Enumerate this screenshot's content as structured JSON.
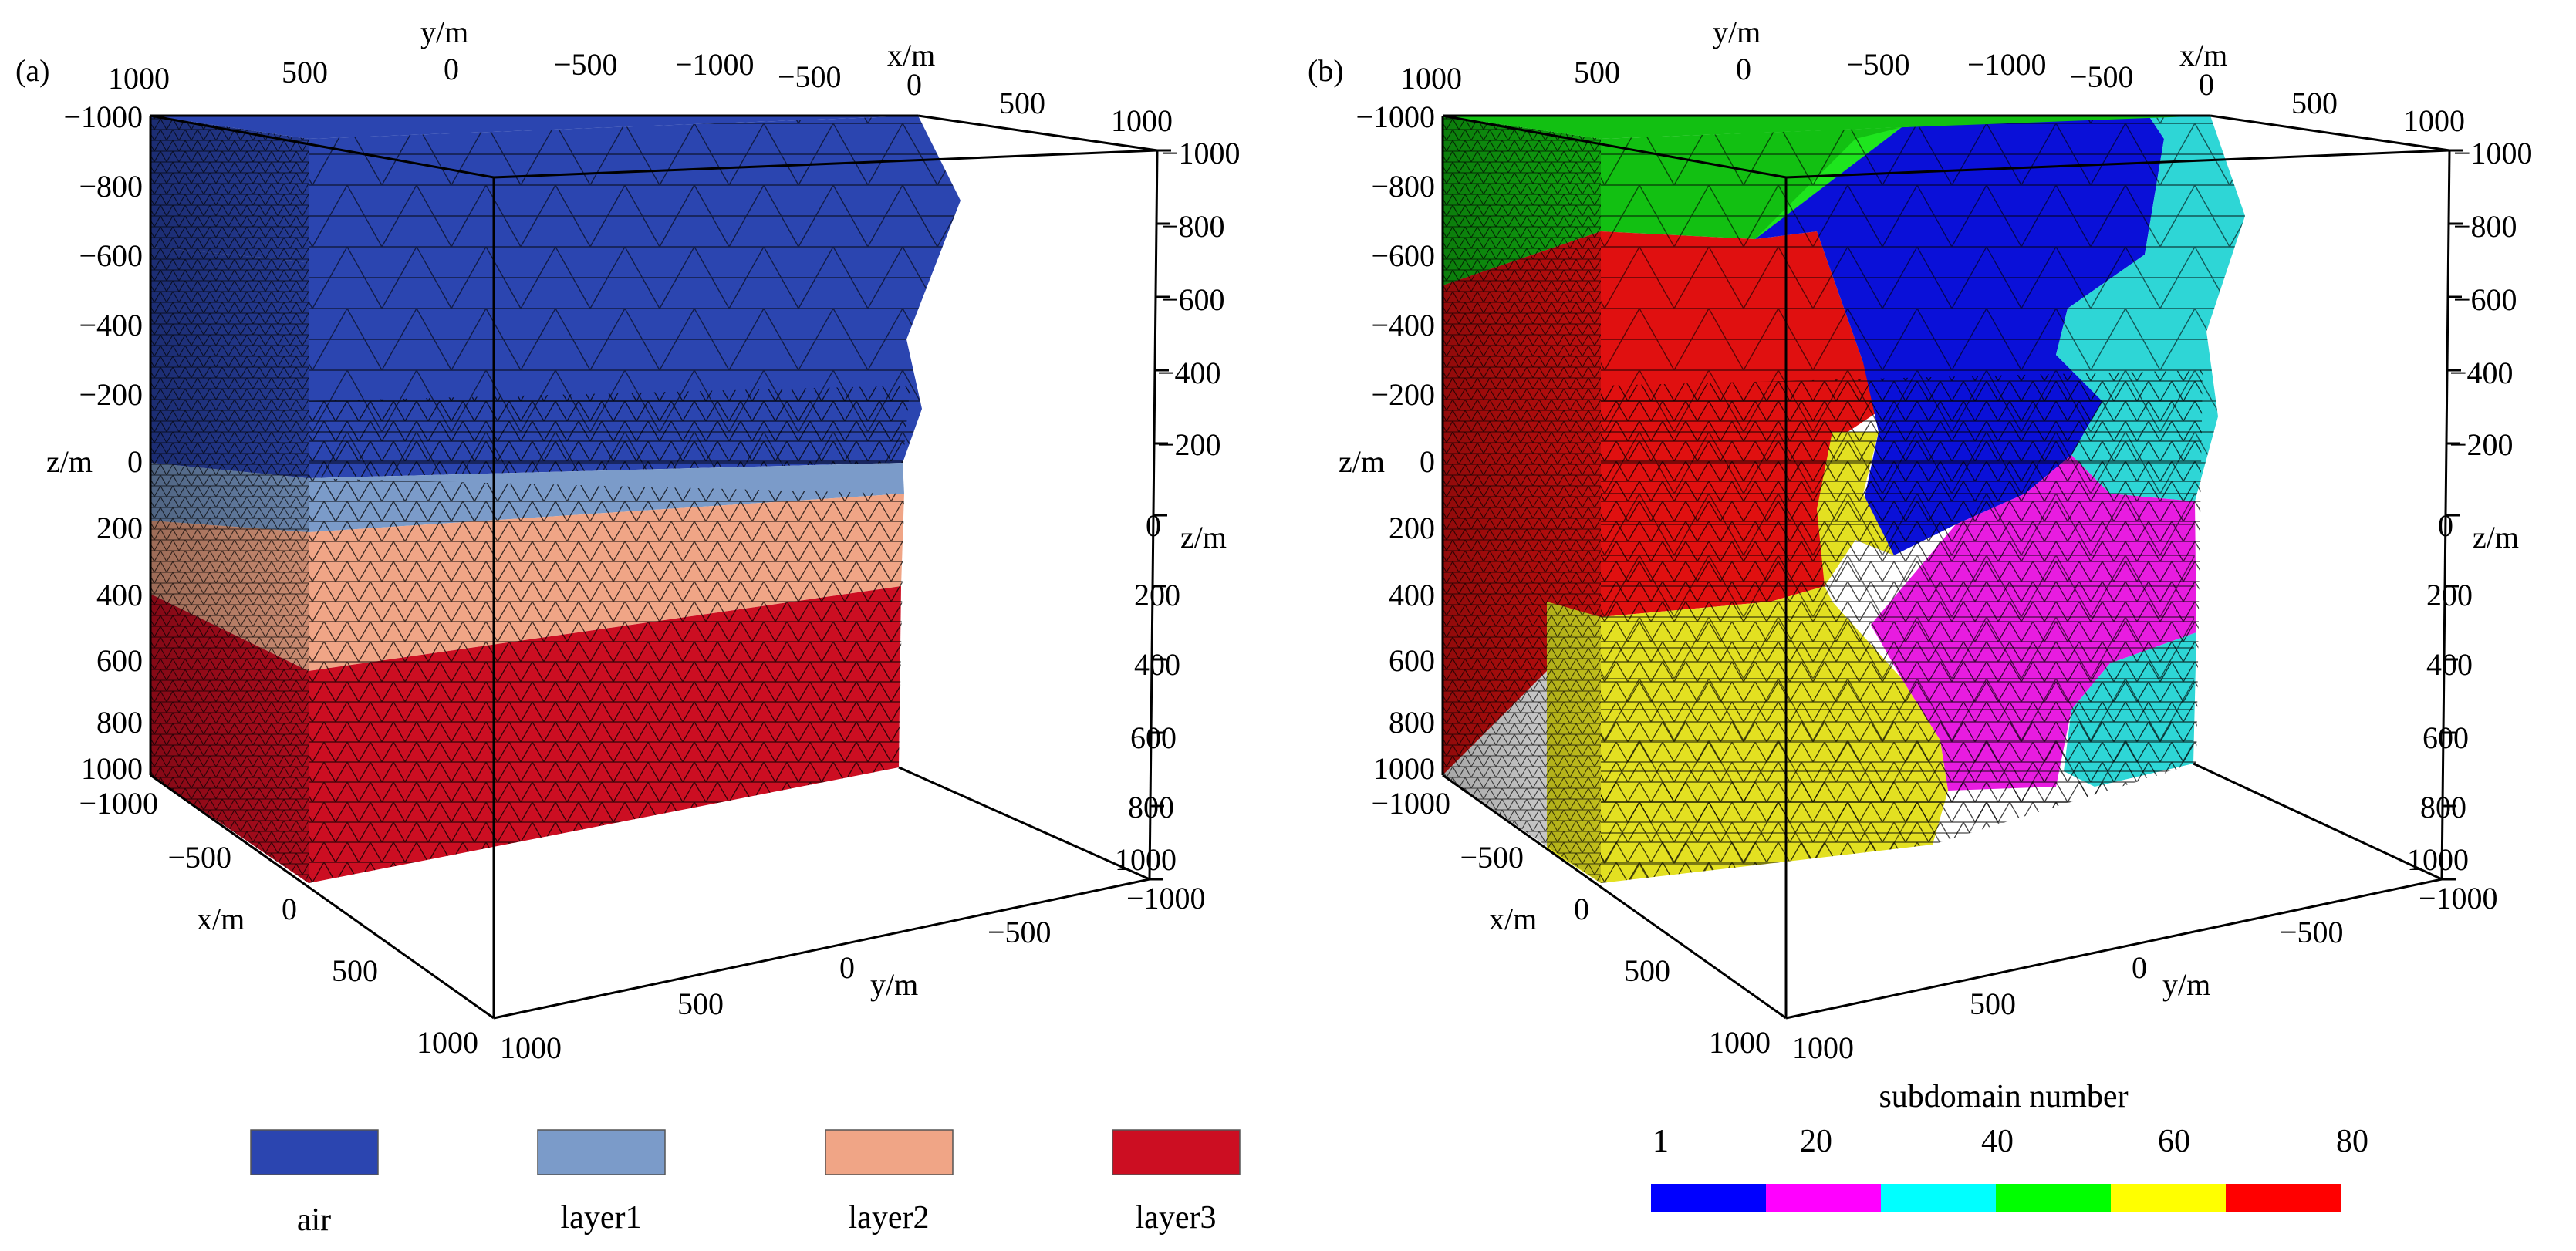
{
  "panels": [
    {
      "label": "(a)",
      "y_top_title": "y/m",
      "x_top_title": "x/m",
      "y_top_ticks": [
        "1000",
        "500",
        "0",
        "−500",
        "−1000"
      ],
      "x_top_ticks": [
        "−500",
        "0",
        "500",
        "1000"
      ],
      "z_left_title": "z/m",
      "z_left_ticks": [
        "−1000",
        "−800",
        "−600",
        "−400",
        "−200",
        "0",
        "200",
        "400",
        "600",
        "800",
        "1000"
      ],
      "z_right_title": "z/m",
      "z_right_ticks": [
        "−1000",
        "−800",
        "−600",
        "−400",
        "−200",
        "0",
        "200",
        "400",
        "600",
        "800",
        "1000"
      ],
      "x_bottom_title": "x/m",
      "x_bottom_ticks": [
        "−1000",
        "−500",
        "0",
        "500",
        "1000"
      ],
      "y_bottom_title": "y/m",
      "y_bottom_ticks": [
        "1000",
        "500",
        "0",
        "−500",
        "−1000"
      ]
    },
    {
      "label": "(b)",
      "y_top_title": "y/m",
      "x_top_title": "x/m",
      "y_top_ticks": [
        "1000",
        "500",
        "0",
        "−500",
        "−1000"
      ],
      "x_top_ticks": [
        "−500",
        "0",
        "500",
        "1000"
      ],
      "z_left_title": "z/m",
      "z_left_ticks": [
        "−1000",
        "−800",
        "−600",
        "−400",
        "−200",
        "0",
        "200",
        "400",
        "600",
        "800",
        "1000"
      ],
      "z_right_title": "z/m",
      "z_right_ticks": [
        "−1000",
        "−800",
        "−600",
        "−400",
        "−200",
        "0",
        "200",
        "400",
        "600",
        "800",
        "1000"
      ],
      "x_bottom_title": "x/m",
      "x_bottom_ticks": [
        "−1000",
        "−500",
        "0",
        "500",
        "1000"
      ],
      "y_bottom_title": "y/m",
      "y_bottom_ticks": [
        "1000",
        "500",
        "0",
        "−500",
        "−1000"
      ]
    }
  ],
  "legend_a": [
    {
      "label": "air",
      "color": "#2b45b0"
    },
    {
      "label": "layer1",
      "color": "#7b9bc9"
    },
    {
      "label": "layer2",
      "color": "#f0a586"
    },
    {
      "label": "layer3",
      "color": "#cc0e22"
    }
  ],
  "colorbar": {
    "title": "subdomain number",
    "ticks": [
      "1",
      "20",
      "40",
      "60",
      "80"
    ],
    "colors": [
      "#0000ff",
      "#ff00ff",
      "#00ffff",
      "#00ff00",
      "#ffff00",
      "#ff0000"
    ]
  },
  "colors": {
    "air": "#2b45b0",
    "layer1": "#7b9bc9",
    "layer2": "#f0a586",
    "layer3": "#cc0e22",
    "blue": "#0a10d8",
    "magenta": "#e81ce0",
    "cyan": "#2ed6d6",
    "green": "#12c012",
    "yellow": "#e3e021",
    "red": "#e01010"
  }
}
